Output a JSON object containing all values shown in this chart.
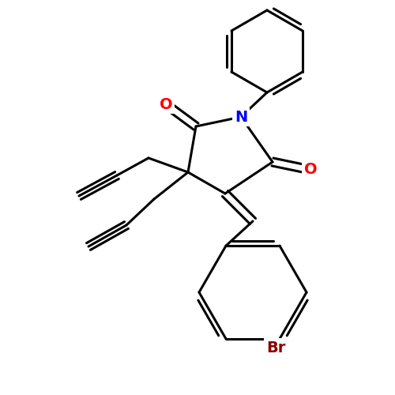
{
  "background_color": "#ffffff",
  "bond_color": "#000000",
  "bond_width": 2.2,
  "atom_colors": {
    "O": "#ff0000",
    "N": "#0000ff",
    "Br": "#8b0000",
    "C": "#000000"
  }
}
